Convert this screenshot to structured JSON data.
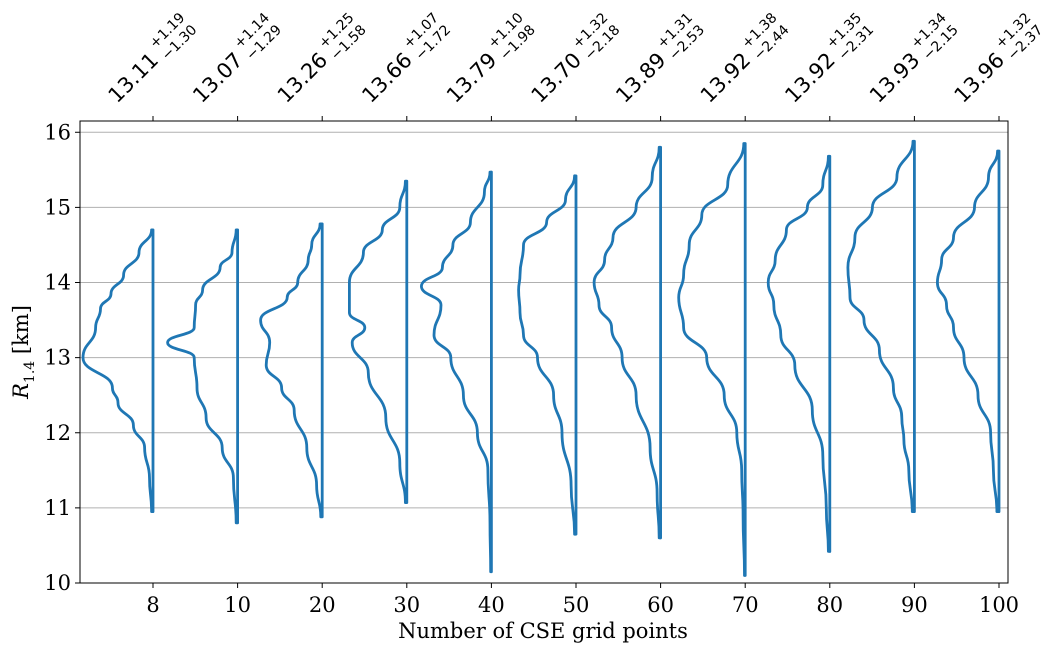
{
  "chart_data": {
    "type": "violin",
    "xlabel": "Number of CSE grid points",
    "ylabel_main": "R",
    "ylabel_sub": "1.4",
    "ylabel_unit": " [km]",
    "ylim": [
      10,
      16.15
    ],
    "yticks": [
      "10",
      "11",
      "12",
      "13",
      "14",
      "15",
      "16"
    ],
    "grid": "horizontal",
    "color": "#1f77b4",
    "categories": [
      "8",
      "10",
      "20",
      "30",
      "40",
      "50",
      "60",
      "70",
      "80",
      "90",
      "100"
    ],
    "medians": [
      {
        "value": "13.11",
        "plus": "+1.19",
        "minus": "−1.30"
      },
      {
        "value": "13.07",
        "plus": "+1.14",
        "minus": "−1.29"
      },
      {
        "value": "13.26",
        "plus": "+1.25",
        "minus": "−1.58"
      },
      {
        "value": "13.66",
        "plus": "+1.07",
        "minus": "−1.72"
      },
      {
        "value": "13.79",
        "plus": "+1.10",
        "minus": "−1.98"
      },
      {
        "value": "13.70",
        "plus": "+1.32",
        "minus": "−2.18"
      },
      {
        "value": "13.89",
        "plus": "+1.31",
        "minus": "−2.53"
      },
      {
        "value": "13.92",
        "plus": "+1.38",
        "minus": "−2.44"
      },
      {
        "value": "13.92",
        "plus": "+1.35",
        "minus": "−2.31"
      },
      {
        "value": "13.93",
        "plus": "+1.34",
        "minus": "−2.15"
      },
      {
        "value": "13.96",
        "plus": "+1.32",
        "minus": "−2.37"
      }
    ],
    "series": [
      {
        "min": 10.95,
        "max": 14.7,
        "profile": [
          [
            10.95,
            0.02
          ],
          [
            11.4,
            0.05
          ],
          [
            11.8,
            0.12
          ],
          [
            12.1,
            0.28
          ],
          [
            12.4,
            0.5
          ],
          [
            12.6,
            0.58
          ],
          [
            13.0,
            1.0
          ],
          [
            13.4,
            0.82
          ],
          [
            13.65,
            0.75
          ],
          [
            13.85,
            0.6
          ],
          [
            14.1,
            0.42
          ],
          [
            14.4,
            0.2
          ],
          [
            14.7,
            0.02
          ]
        ]
      },
      {
        "min": 10.8,
        "max": 14.7,
        "profile": [
          [
            10.8,
            0.02
          ],
          [
            11.4,
            0.06
          ],
          [
            11.8,
            0.22
          ],
          [
            12.2,
            0.45
          ],
          [
            12.6,
            0.58
          ],
          [
            13.0,
            0.62
          ],
          [
            13.2,
            1.0
          ],
          [
            13.4,
            0.62
          ],
          [
            13.7,
            0.6
          ],
          [
            13.9,
            0.5
          ],
          [
            14.2,
            0.25
          ],
          [
            14.4,
            0.08
          ],
          [
            14.7,
            0.02
          ]
        ]
      },
      {
        "min": 10.88,
        "max": 14.78,
        "profile": [
          [
            10.88,
            0.02
          ],
          [
            11.3,
            0.08
          ],
          [
            11.8,
            0.22
          ],
          [
            12.3,
            0.4
          ],
          [
            12.6,
            0.58
          ],
          [
            12.9,
            0.8
          ],
          [
            13.2,
            0.75
          ],
          [
            13.5,
            0.88
          ],
          [
            13.8,
            0.5
          ],
          [
            14.0,
            0.35
          ],
          [
            14.3,
            0.2
          ],
          [
            14.5,
            0.15
          ],
          [
            14.78,
            0.03
          ]
        ]
      },
      {
        "min": 11.07,
        "max": 15.35,
        "profile": [
          [
            11.07,
            0.02
          ],
          [
            11.6,
            0.1
          ],
          [
            12.2,
            0.3
          ],
          [
            12.8,
            0.55
          ],
          [
            13.2,
            0.78
          ],
          [
            13.4,
            0.6
          ],
          [
            13.6,
            0.82
          ],
          [
            14.0,
            0.82
          ],
          [
            14.4,
            0.62
          ],
          [
            14.7,
            0.35
          ],
          [
            15.0,
            0.1
          ],
          [
            15.35,
            0.02
          ]
        ]
      },
      {
        "min": 10.15,
        "max": 15.47,
        "profile": [
          [
            10.15,
            0.01
          ],
          [
            10.8,
            0.02
          ],
          [
            11.5,
            0.05
          ],
          [
            12.0,
            0.2
          ],
          [
            12.5,
            0.4
          ],
          [
            13.0,
            0.58
          ],
          [
            13.3,
            0.82
          ],
          [
            13.7,
            0.72
          ],
          [
            13.95,
            1.0
          ],
          [
            14.2,
            0.7
          ],
          [
            14.5,
            0.55
          ],
          [
            14.8,
            0.3
          ],
          [
            15.2,
            0.1
          ],
          [
            15.47,
            0.02
          ]
        ]
      },
      {
        "min": 10.65,
        "max": 15.42,
        "profile": [
          [
            10.65,
            0.02
          ],
          [
            11.3,
            0.07
          ],
          [
            12.0,
            0.2
          ],
          [
            12.5,
            0.32
          ],
          [
            13.0,
            0.55
          ],
          [
            13.3,
            0.75
          ],
          [
            13.6,
            0.8
          ],
          [
            13.9,
            0.82
          ],
          [
            14.1,
            0.8
          ],
          [
            14.5,
            0.75
          ],
          [
            14.8,
            0.42
          ],
          [
            15.1,
            0.15
          ],
          [
            15.42,
            0.02
          ]
        ]
      },
      {
        "min": 10.6,
        "max": 15.8,
        "profile": [
          [
            10.6,
            0.02
          ],
          [
            11.2,
            0.05
          ],
          [
            11.8,
            0.15
          ],
          [
            12.5,
            0.35
          ],
          [
            13.0,
            0.55
          ],
          [
            13.4,
            0.7
          ],
          [
            13.7,
            0.88
          ],
          [
            14.0,
            0.95
          ],
          [
            14.3,
            0.8
          ],
          [
            14.6,
            0.68
          ],
          [
            15.0,
            0.35
          ],
          [
            15.4,
            0.12
          ],
          [
            15.8,
            0.02
          ]
        ]
      },
      {
        "min": 10.1,
        "max": 15.85,
        "profile": [
          [
            10.1,
            0.01
          ],
          [
            10.9,
            0.03
          ],
          [
            11.5,
            0.05
          ],
          [
            12.0,
            0.12
          ],
          [
            12.5,
            0.3
          ],
          [
            13.0,
            0.55
          ],
          [
            13.4,
            0.88
          ],
          [
            13.8,
            0.95
          ],
          [
            14.1,
            0.88
          ],
          [
            14.5,
            0.8
          ],
          [
            14.9,
            0.62
          ],
          [
            15.3,
            0.25
          ],
          [
            15.85,
            0.02
          ]
        ]
      },
      {
        "min": 10.42,
        "max": 15.68,
        "profile": [
          [
            10.42,
            0.02
          ],
          [
            11.0,
            0.05
          ],
          [
            11.7,
            0.1
          ],
          [
            12.3,
            0.25
          ],
          [
            12.9,
            0.5
          ],
          [
            13.3,
            0.7
          ],
          [
            13.7,
            0.8
          ],
          [
            14.0,
            0.88
          ],
          [
            14.3,
            0.78
          ],
          [
            14.7,
            0.62
          ],
          [
            15.0,
            0.32
          ],
          [
            15.3,
            0.1
          ],
          [
            15.68,
            0.02
          ]
        ]
      },
      {
        "min": 10.95,
        "max": 15.88,
        "profile": [
          [
            10.95,
            0.03
          ],
          [
            11.5,
            0.08
          ],
          [
            11.9,
            0.15
          ],
          [
            12.2,
            0.18
          ],
          [
            12.6,
            0.3
          ],
          [
            13.1,
            0.5
          ],
          [
            13.5,
            0.72
          ],
          [
            13.8,
            0.92
          ],
          [
            14.2,
            0.95
          ],
          [
            14.6,
            0.85
          ],
          [
            15.0,
            0.6
          ],
          [
            15.4,
            0.25
          ],
          [
            15.88,
            0.02
          ]
        ]
      },
      {
        "min": 10.95,
        "max": 15.75,
        "profile": [
          [
            10.95,
            0.03
          ],
          [
            11.5,
            0.08
          ],
          [
            12.0,
            0.12
          ],
          [
            12.5,
            0.3
          ],
          [
            13.0,
            0.5
          ],
          [
            13.4,
            0.65
          ],
          [
            13.7,
            0.75
          ],
          [
            14.0,
            0.88
          ],
          [
            14.3,
            0.82
          ],
          [
            14.6,
            0.65
          ],
          [
            15.0,
            0.35
          ],
          [
            15.4,
            0.15
          ],
          [
            15.75,
            0.02
          ]
        ]
      }
    ]
  }
}
